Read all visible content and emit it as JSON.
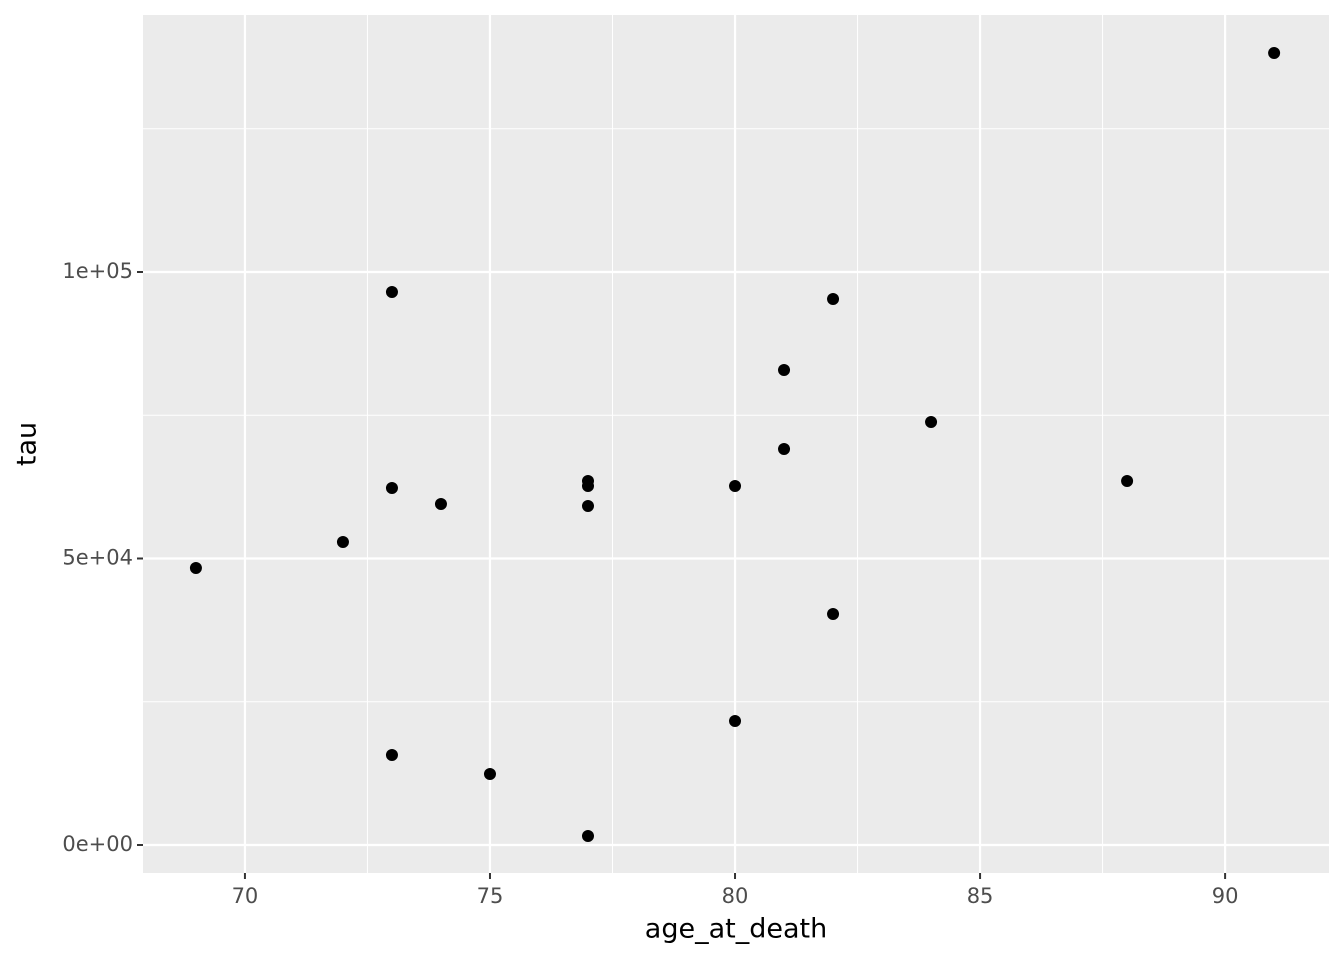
{
  "chart_data": {
    "type": "scatter",
    "x_label": "age_at_death",
    "y_label": "tau",
    "x": [
      69,
      72,
      73,
      73,
      73,
      74,
      75,
      77,
      77,
      77,
      77,
      80,
      80,
      81,
      81,
      82,
      82,
      84,
      88,
      91
    ],
    "series": [
      {
        "color": "#000000",
        "values": [
          48342,
          52880,
          96510,
          62304,
          15707,
          59511,
          12391,
          63525,
          62653,
          59162,
          1571,
          62653,
          21640,
          82897,
          69110,
          95288,
          40314,
          73822,
          63525,
          138220
        ]
      }
    ],
    "xlim": [
      67.92,
      92.12
    ],
    "ylim": [
      -4887,
      144851
    ],
    "xticks": [
      70,
      75,
      80,
      85,
      90
    ],
    "yticks": [
      {
        "value": 0,
        "label": "0e+00"
      },
      {
        "value": 50000,
        "label": "5e+04"
      },
      {
        "value": 100000,
        "label": "1e+05"
      }
    ],
    "minor_xticks": [
      72.5,
      77.5,
      82.5,
      87.5
    ],
    "minor_yticks": [
      25000,
      75000,
      125000
    ],
    "grid": true,
    "panel_color": "#ebebeb"
  }
}
